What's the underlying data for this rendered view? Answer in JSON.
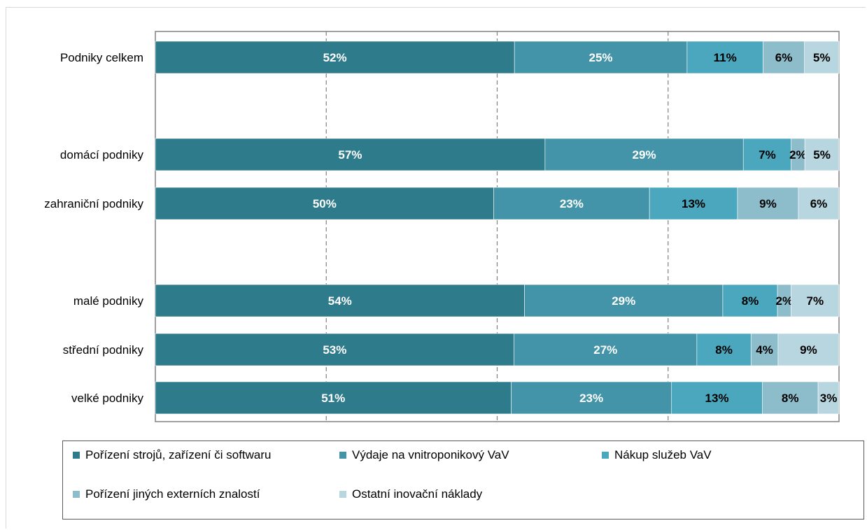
{
  "chart_data": {
    "type": "bar",
    "orientation": "horizontal",
    "stacked": true,
    "stacking": "percent",
    "categories": [
      "Podniky celkem",
      "domácí podniky",
      "zahraniční podniky",
      "malé podniky",
      "střední podniky",
      "velké podniky"
    ],
    "series": [
      {
        "name": "Pořízení strojů, zařízení či softwaru",
        "color": "#2e7b8c",
        "values": [
          52,
          57,
          50,
          54,
          53,
          51
        ]
      },
      {
        "name": "Výdaje na vnitroponikový VaV",
        "color": "#4394a9",
        "values": [
          25,
          29,
          23,
          29,
          27,
          23
        ]
      },
      {
        "name": "Nákup služeb VaV",
        "color": "#4aa7be",
        "values": [
          11,
          7,
          13,
          8,
          8,
          13
        ]
      },
      {
        "name": "Pořízení jiných externích znalostí",
        "color": "#8dbccb",
        "values": [
          6,
          2,
          9,
          2,
          4,
          8
        ]
      },
      {
        "name": "Ostatní inovační náklady",
        "color": "#b8d6df",
        "values": [
          5,
          5,
          6,
          7,
          9,
          3
        ]
      }
    ],
    "xlim": [
      0,
      100
    ],
    "grid": true,
    "grid_style": "dashed vertical",
    "legend_position": "bottom",
    "xlabel": "",
    "ylabel": "",
    "title": ""
  }
}
